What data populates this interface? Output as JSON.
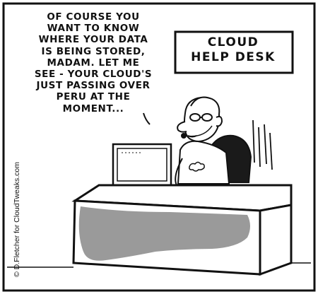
{
  "speech_bubble": {
    "text": "OF COURSE YOU\nWANT TO KNOW\nWHERE YOUR DATA\nIS BEING STORED,\nMADAM. LET ME\nSEE - YOUR CLOUD'S\nJUST PASSING OVER\nPERU AT THE\nMOMENT..."
  },
  "sign": {
    "line1": "CLOUD",
    "line2": "HELP DESK"
  },
  "credit": "© D.Fletcher for CloudTweaks.com",
  "colors": {
    "ink": "#111111",
    "background": "#ffffff",
    "desk_stain": "#9a9a9a",
    "chair": "#1a1a1a"
  }
}
